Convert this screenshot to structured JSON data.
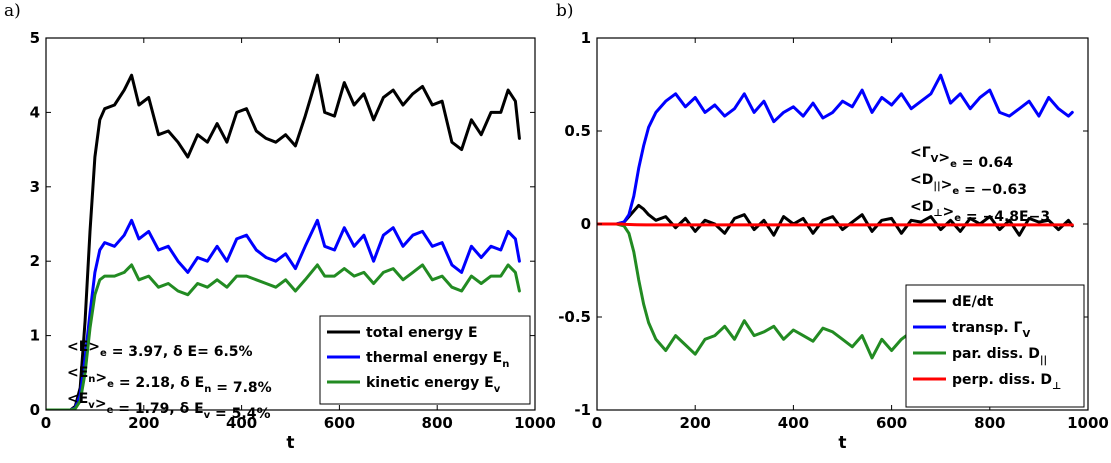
{
  "chart_data": [
    {
      "type": "line",
      "panel_label": "a)",
      "xlabel": "t",
      "ylabel": "",
      "xlim": [
        0,
        1000
      ],
      "ylim": [
        0,
        5
      ],
      "xticks": [
        0,
        200,
        400,
        600,
        800,
        1000
      ],
      "yticks": [
        0,
        1,
        2,
        3,
        4,
        5
      ],
      "grid": false,
      "legend_position": "bottom-right",
      "legend": [
        {
          "base": "total energy E",
          "sub": ""
        },
        {
          "base": "thermal energy E",
          "sub": "n"
        },
        {
          "base": "kinetic energy E",
          "sub": "v"
        }
      ],
      "annotations": [
        [
          {
            "t": "<E>"
          },
          {
            "t": "e",
            "sub": true
          },
          {
            "t": " = 3.97, δ E= 6.5%"
          }
        ],
        [
          {
            "t": "<E"
          },
          {
            "t": "n",
            "sub": true
          },
          {
            "t": ">"
          },
          {
            "t": "e",
            "sub": true
          },
          {
            "t": " = 2.18,   δ E"
          },
          {
            "t": "n",
            "sub": true
          },
          {
            "t": "  = 7.8%"
          }
        ],
        [
          {
            "t": "<E"
          },
          {
            "t": "v",
            "sub": true
          },
          {
            "t": ">"
          },
          {
            "t": "e",
            "sub": true
          },
          {
            "t": " = 1.79,   δ E"
          },
          {
            "t": "v",
            "sub": true
          },
          {
            "t": "  = 5.4%"
          }
        ]
      ],
      "series": [
        {
          "name": "total energy E",
          "color": "#000000",
          "x": [
            0,
            30,
            50,
            60,
            70,
            80,
            90,
            100,
            110,
            120,
            140,
            160,
            175,
            190,
            210,
            230,
            250,
            270,
            290,
            310,
            330,
            350,
            370,
            390,
            410,
            430,
            450,
            470,
            490,
            510,
            530,
            555,
            570,
            590,
            610,
            630,
            650,
            670,
            690,
            710,
            730,
            750,
            770,
            790,
            810,
            830,
            850,
            870,
            890,
            910,
            930,
            945,
            960,
            968
          ],
          "y": [
            0,
            0,
            0,
            0.05,
            0.3,
            1.2,
            2.4,
            3.4,
            3.9,
            4.05,
            4.1,
            4.3,
            4.5,
            4.1,
            4.2,
            3.7,
            3.75,
            3.6,
            3.4,
            3.7,
            3.6,
            3.85,
            3.6,
            4.0,
            4.05,
            3.75,
            3.65,
            3.6,
            3.7,
            3.55,
            3.95,
            4.5,
            4.0,
            3.95,
            4.4,
            4.1,
            4.25,
            3.9,
            4.2,
            4.3,
            4.1,
            4.25,
            4.35,
            4.1,
            4.15,
            3.6,
            3.5,
            3.9,
            3.7,
            4.0,
            4.0,
            4.3,
            4.15,
            3.65
          ]
        },
        {
          "name": "thermal energy E_n",
          "color": "#0000ff",
          "x": [
            0,
            30,
            50,
            60,
            70,
            80,
            90,
            100,
            110,
            120,
            140,
            160,
            175,
            190,
            210,
            230,
            250,
            270,
            290,
            310,
            330,
            350,
            370,
            390,
            410,
            430,
            450,
            470,
            490,
            510,
            530,
            555,
            570,
            590,
            610,
            630,
            650,
            670,
            690,
            710,
            730,
            750,
            770,
            790,
            810,
            830,
            850,
            870,
            890,
            910,
            930,
            945,
            960,
            968
          ],
          "y": [
            0,
            0,
            0,
            0.03,
            0.2,
            0.7,
            1.3,
            1.85,
            2.15,
            2.25,
            2.2,
            2.35,
            2.55,
            2.3,
            2.4,
            2.15,
            2.2,
            2.0,
            1.85,
            2.05,
            2.0,
            2.2,
            2.0,
            2.3,
            2.35,
            2.15,
            2.05,
            2.0,
            2.1,
            1.9,
            2.2,
            2.55,
            2.2,
            2.15,
            2.45,
            2.2,
            2.35,
            2.0,
            2.35,
            2.45,
            2.2,
            2.35,
            2.4,
            2.2,
            2.25,
            1.95,
            1.85,
            2.2,
            2.05,
            2.2,
            2.15,
            2.4,
            2.3,
            2.0
          ]
        },
        {
          "name": "kinetic energy E_v",
          "color": "#228b22",
          "x": [
            0,
            30,
            50,
            60,
            70,
            80,
            90,
            100,
            110,
            120,
            140,
            160,
            175,
            190,
            210,
            230,
            250,
            270,
            290,
            310,
            330,
            350,
            370,
            390,
            410,
            430,
            450,
            470,
            490,
            510,
            530,
            555,
            570,
            590,
            610,
            630,
            650,
            670,
            690,
            710,
            730,
            750,
            770,
            790,
            810,
            830,
            850,
            870,
            890,
            910,
            930,
            945,
            960,
            968
          ],
          "y": [
            0,
            0,
            0,
            0.02,
            0.12,
            0.5,
            1.1,
            1.55,
            1.75,
            1.8,
            1.8,
            1.85,
            1.95,
            1.75,
            1.8,
            1.65,
            1.7,
            1.6,
            1.55,
            1.7,
            1.65,
            1.75,
            1.65,
            1.8,
            1.8,
            1.75,
            1.7,
            1.65,
            1.75,
            1.6,
            1.75,
            1.95,
            1.8,
            1.8,
            1.9,
            1.8,
            1.85,
            1.7,
            1.85,
            1.9,
            1.75,
            1.85,
            1.95,
            1.75,
            1.8,
            1.65,
            1.6,
            1.8,
            1.7,
            1.8,
            1.8,
            1.95,
            1.85,
            1.6
          ]
        }
      ]
    },
    {
      "type": "line",
      "panel_label": "b)",
      "xlabel": "t",
      "ylabel": "",
      "xlim": [
        0,
        1000
      ],
      "ylim": [
        -1,
        1
      ],
      "xticks": [
        0,
        200,
        400,
        600,
        800,
        1000
      ],
      "yticks": [
        -1,
        -0.5,
        0,
        0.5,
        1
      ],
      "grid": false,
      "legend_position": "bottom-right",
      "legend": [
        {
          "base": "dE/dt",
          "sub": ""
        },
        {
          "base": "transp. Γ",
          "sub": "V"
        },
        {
          "base": "par. diss. D",
          "sub": "||"
        },
        {
          "base": "perp. diss. D",
          "sub": "⊥"
        }
      ],
      "annotations": [
        [
          {
            "t": "<Γ"
          },
          {
            "t": "V",
            "sub": true
          },
          {
            "t": ">"
          },
          {
            "t": "e",
            "sub": true
          },
          {
            "t": "    = 0.64"
          }
        ],
        [
          {
            "t": "<D"
          },
          {
            "t": "||",
            "sub": true
          },
          {
            "t": ">"
          },
          {
            "t": "e",
            "sub": true
          },
          {
            "t": "  = −0.63"
          }
        ],
        [
          {
            "t": "<D"
          },
          {
            "t": "⊥",
            "sub": true
          },
          {
            "t": ">"
          },
          {
            "t": "e",
            "sub": true
          },
          {
            "t": " = −4.8E−3"
          }
        ]
      ],
      "series": [
        {
          "name": "dE/dt",
          "color": "#000000",
          "x": [
            0,
            40,
            55,
            65,
            75,
            85,
            95,
            105,
            120,
            140,
            160,
            180,
            200,
            220,
            240,
            260,
            280,
            300,
            320,
            340,
            360,
            380,
            400,
            420,
            440,
            460,
            480,
            500,
            520,
            540,
            560,
            580,
            600,
            620,
            640,
            660,
            680,
            700,
            720,
            740,
            760,
            780,
            800,
            820,
            840,
            860,
            880,
            900,
            920,
            940,
            960,
            968
          ],
          "y": [
            0,
            0,
            0.01,
            0.04,
            0.07,
            0.1,
            0.08,
            0.05,
            0.02,
            0.04,
            -0.02,
            0.03,
            -0.04,
            0.02,
            0.0,
            -0.05,
            0.03,
            0.05,
            -0.03,
            0.02,
            -0.06,
            0.04,
            0.0,
            0.03,
            -0.05,
            0.02,
            0.04,
            -0.03,
            0.01,
            0.05,
            -0.04,
            0.02,
            0.03,
            -0.05,
            0.02,
            0.01,
            0.04,
            -0.03,
            0.02,
            -0.04,
            0.03,
            0.0,
            0.04,
            -0.03,
            0.02,
            -0.06,
            0.03,
            0.01,
            0.02,
            -0.03,
            0.02,
            -0.01
          ]
        },
        {
          "name": "transp. Γ_V",
          "color": "#0000ff",
          "x": [
            0,
            40,
            55,
            65,
            75,
            85,
            95,
            105,
            120,
            140,
            160,
            180,
            200,
            220,
            240,
            260,
            280,
            300,
            320,
            340,
            360,
            380,
            400,
            420,
            440,
            460,
            480,
            500,
            520,
            540,
            560,
            580,
            600,
            620,
            640,
            660,
            680,
            700,
            720,
            740,
            760,
            780,
            800,
            820,
            840,
            860,
            880,
            900,
            920,
            940,
            960,
            968
          ],
          "y": [
            0,
            0,
            0.01,
            0.05,
            0.15,
            0.3,
            0.42,
            0.52,
            0.6,
            0.66,
            0.7,
            0.63,
            0.68,
            0.6,
            0.64,
            0.58,
            0.62,
            0.7,
            0.6,
            0.66,
            0.55,
            0.6,
            0.63,
            0.58,
            0.65,
            0.57,
            0.6,
            0.66,
            0.63,
            0.72,
            0.6,
            0.68,
            0.64,
            0.7,
            0.62,
            0.66,
            0.7,
            0.8,
            0.65,
            0.7,
            0.62,
            0.68,
            0.72,
            0.6,
            0.58,
            0.62,
            0.66,
            0.58,
            0.68,
            0.62,
            0.58,
            0.6
          ]
        },
        {
          "name": "par. diss. D_||",
          "color": "#228b22",
          "x": [
            0,
            40,
            55,
            65,
            75,
            85,
            95,
            105,
            120,
            140,
            160,
            180,
            200,
            220,
            240,
            260,
            280,
            300,
            320,
            340,
            360,
            380,
            400,
            420,
            440,
            460,
            480,
            500,
            520,
            540,
            560,
            580,
            600,
            620,
            640,
            660,
            680,
            700,
            720,
            740,
            760,
            780,
            800,
            820,
            840,
            860,
            880,
            900,
            920,
            940,
            960,
            968
          ],
          "y": [
            0,
            0,
            -0.01,
            -0.05,
            -0.15,
            -0.3,
            -0.43,
            -0.53,
            -0.62,
            -0.68,
            -0.6,
            -0.65,
            -0.7,
            -0.62,
            -0.6,
            -0.55,
            -0.62,
            -0.52,
            -0.6,
            -0.58,
            -0.55,
            -0.62,
            -0.57,
            -0.6,
            -0.63,
            -0.56,
            -0.58,
            -0.62,
            -0.66,
            -0.6,
            -0.72,
            -0.62,
            -0.68,
            -0.62,
            -0.58,
            -0.64,
            -0.6,
            -0.68,
            -0.62,
            -0.6,
            -0.66,
            -0.62,
            -0.6,
            -0.66,
            -0.58,
            -0.62,
            -0.6,
            -0.64,
            -0.6,
            -0.58,
            -0.62,
            -0.6
          ]
        },
        {
          "name": "perp. diss. D_⊥",
          "color": "#ff0000",
          "x": [
            0,
            50,
            60,
            80,
            100,
            200,
            400,
            600,
            800,
            968
          ],
          "y": [
            0,
            0,
            -0.002,
            -0.004,
            -0.005,
            -0.005,
            -0.005,
            -0.005,
            -0.005,
            -0.005
          ]
        }
      ]
    }
  ]
}
